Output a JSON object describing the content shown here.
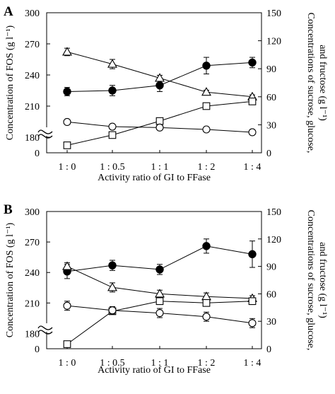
{
  "chart_data": [
    {
      "type": "line",
      "panel_label": "A",
      "categories": [
        "1 : 0",
        "1 : 0.5",
        "1 : 1",
        "1 : 2",
        "1 : 4"
      ],
      "xlabel": "Activity ratio of GI to FFase",
      "ylabel_left": "Concentration of FOS (g l⁻¹)",
      "ylabel_right_line1": "Concentrations of sucrose, glucose,",
      "ylabel_right_line2": "and fructose (g l⁻¹)",
      "left_axis": {
        "ticks": [
          "0",
          "180",
          "210",
          "240",
          "270",
          "300"
        ],
        "break": "between 0 and 180",
        "ylim": [
          165,
          300
        ]
      },
      "right_axis": {
        "ticks": [
          "0",
          "30",
          "60",
          "90",
          "120",
          "150"
        ],
        "ylim": [
          0,
          150
        ]
      },
      "series": [
        {
          "marker": "filled-circle",
          "axis": "left",
          "values": [
            224,
            225,
            230,
            249,
            252
          ],
          "errors": [
            4,
            5,
            6,
            8,
            5
          ]
        },
        {
          "marker": "open-triangle",
          "axis": "right",
          "values": [
            108,
            95,
            80,
            65,
            60
          ],
          "errors": [
            4,
            5,
            3,
            2,
            2
          ]
        },
        {
          "marker": "open-square",
          "axis": "right",
          "values": [
            8,
            19,
            34,
            50,
            55
          ],
          "errors": [
            1,
            1,
            2,
            1,
            1
          ]
        },
        {
          "marker": "open-circle",
          "axis": "right",
          "values": [
            33,
            28,
            27,
            25,
            22
          ],
          "errors": [
            1,
            1,
            1,
            1,
            1
          ]
        }
      ]
    },
    {
      "type": "line",
      "panel_label": "B",
      "categories": [
        "1 : 0",
        "1 : 0.5",
        "1 : 1",
        "1 : 2",
        "1 : 4"
      ],
      "xlabel": "Activity ratio of GI to FFase",
      "ylabel_left": "Concentration of FOS (g l⁻¹)",
      "ylabel_right_line1": "Concentrations of sucrose, glucose,",
      "ylabel_right_line2": "and fructose (g l⁻¹)",
      "left_axis": {
        "ticks": [
          "0",
          "180",
          "210",
          "240",
          "270",
          "300"
        ],
        "break": "between 0 and 180",
        "ylim": [
          165,
          300
        ]
      },
      "right_axis": {
        "ticks": [
          "0",
          "30",
          "60",
          "90",
          "120",
          "150"
        ],
        "ylim": [
          0,
          150
        ]
      },
      "series": [
        {
          "marker": "filled-circle",
          "axis": "left",
          "values": [
            241,
            247,
            243,
            266,
            258
          ],
          "errors": [
            7,
            5,
            5,
            7,
            13
          ]
        },
        {
          "marker": "open-triangle",
          "axis": "right",
          "values": [
            90,
            67,
            60,
            57,
            55
          ],
          "errors": [
            4,
            5,
            4,
            4,
            3
          ]
        },
        {
          "marker": "open-square",
          "axis": "right",
          "values": [
            5,
            41,
            52,
            50,
            52
          ],
          "errors": [
            1,
            3,
            2,
            2,
            2
          ]
        },
        {
          "marker": "open-circle",
          "axis": "right",
          "values": [
            47,
            42,
            39,
            35,
            28
          ],
          "errors": [
            5,
            4,
            5,
            5,
            5
          ]
        }
      ]
    }
  ]
}
